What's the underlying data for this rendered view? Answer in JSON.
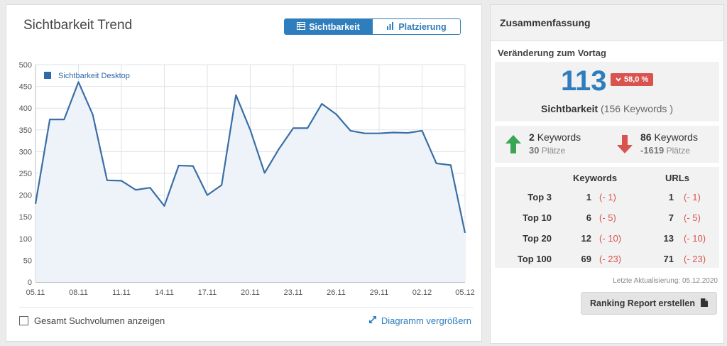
{
  "trend": {
    "title": "Sichtbarkeit Trend",
    "toggle": {
      "active": "Sichtbarkeit",
      "inactive": "Platzierung"
    },
    "checkbox_label": "Gesamt Suchvolumen anzeigen",
    "enlarge_label": "Diagramm vergrößern"
  },
  "chart_data": {
    "type": "area",
    "series": [
      {
        "name": "Sichtbarkeit Desktop",
        "values": [
          180,
          374,
          374,
          460,
          385,
          234,
          233,
          212,
          217,
          175,
          268,
          267,
          200,
          223,
          430,
          350,
          251,
          306,
          354,
          354,
          410,
          386,
          348,
          342,
          342,
          344,
          343,
          348,
          273,
          269,
          113
        ]
      }
    ],
    "x_tick_labels": [
      "05.11",
      "08.11",
      "11.11",
      "14.11",
      "17.11",
      "20.11",
      "23.11",
      "26.11",
      "29.11",
      "02.12",
      "05.12"
    ],
    "y_tick_labels": [
      "500",
      "450",
      "400",
      "350",
      "300",
      "250",
      "200",
      "150",
      "100",
      "50",
      "0"
    ],
    "ylim": [
      0,
      500
    ],
    "grid": true,
    "legend_position": "top-left",
    "colors": {
      "line": "#3a6ea5",
      "fill": "#eef3fa"
    }
  },
  "summary": {
    "header": "Zusammenfassung",
    "subtitle": "Veränderung zum Vortag",
    "score": "113",
    "delta": "58,0 %",
    "score_label": "Sichtbarkeit",
    "score_keywords": "(156 Keywords )",
    "up": {
      "count": "2",
      "count_label": "Keywords",
      "places": "30",
      "places_label": "Plätze"
    },
    "down": {
      "count": "86",
      "count_label": "Keywords",
      "places": "-1619",
      "places_label": "Plätze"
    },
    "table": {
      "col_keywords": "Keywords",
      "col_urls": "URLs",
      "rows": [
        {
          "label": "Top 3",
          "kw": "1",
          "kw_delta": "(- 1)",
          "url": "1",
          "url_delta": "(- 1)"
        },
        {
          "label": "Top 10",
          "kw": "6",
          "kw_delta": "(- 5)",
          "url": "7",
          "url_delta": "(- 5)"
        },
        {
          "label": "Top 20",
          "kw": "12",
          "kw_delta": "(- 10)",
          "url": "13",
          "url_delta": "(- 10)"
        },
        {
          "label": "Top 100",
          "kw": "69",
          "kw_delta": "(- 23)",
          "url": "71",
          "url_delta": "(- 23)"
        }
      ]
    },
    "updated": "Letzte Aktualisierung: 05.12.2020",
    "report_button": "Ranking Report erstellen"
  },
  "colors": {
    "accent": "#2e7dbd",
    "negative": "#d9534f",
    "positive": "#3aa655"
  }
}
